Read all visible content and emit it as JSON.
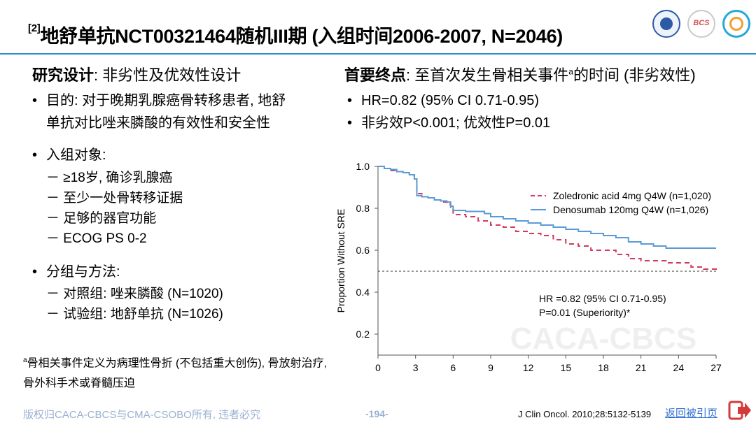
{
  "header": {
    "ref_mark": "[2]",
    "title": "地舒单抗NCT00321464随机III期 (入组时间2006-2007, N=2046)"
  },
  "logos": [
    "university-seal",
    "bcs-logo",
    "csobo-logo"
  ],
  "logo_text": {
    "bcs": "BCS"
  },
  "design": {
    "heading_bold": "研究设计",
    "heading_rest": ": 非劣性及优效性设计",
    "purpose_line1": "目的: 对于晚期乳腺癌骨转移患者, 地舒",
    "purpose_line2": "单抗对比唑来膦酸的有效性和安全性",
    "population_label": "入组对象:",
    "population": [
      "－ ≥18岁, 确诊乳腺癌",
      "－ 至少一处骨转移证据",
      "－ 足够的器官功能",
      "－ ECOG PS 0-2"
    ],
    "grouping_label": "分组与方法:",
    "grouping": [
      "－ 对照组: 唑来膦酸 (N=1020)",
      "－ 试验组: 地舒单抗 (N=1026)"
    ],
    "footnote_sup": "a",
    "footnote": "骨相关事件定义为病理性骨折 (不包括重大创伤), 骨放射治疗, 骨外科手术或脊髓压迫"
  },
  "endpoint": {
    "heading_bold": "首要终点",
    "heading_rest": ": 至首次发生骨相关事件",
    "heading_sup": "a",
    "heading_tail": "的时间 (非劣效性)",
    "items": [
      "HR=0.82 (95% CI 0.71-0.95)",
      "非劣效P<0.001; 优效性P=0.01"
    ]
  },
  "footer": {
    "copyright": "版权归CACA-CBCS与CMA-CSOBO所有, 违者必究",
    "page": "-194-",
    "reference": "J Clin Oncol. 2010;28:5132-5139",
    "back_link": "返回被引页",
    "back_icon": "exit-arrow-icon"
  },
  "chart_data": {
    "type": "line",
    "ylabel": "Proportion Without SRE",
    "xlabel": "",
    "xlim": [
      0,
      27
    ],
    "ylim": [
      0.1,
      1.0
    ],
    "xticks": [
      0,
      3,
      6,
      9,
      12,
      15,
      18,
      21,
      24,
      27
    ],
    "yticks": [
      0.2,
      0.4,
      0.6,
      0.8,
      1.0
    ],
    "reference_line": {
      "y": 0.5,
      "style": "dotted"
    },
    "watermark": "CACA-CBCS",
    "annotation": [
      "HR =0.82 (95% CI 0.71-0.95)",
      "P=0.01 (Superiority)*"
    ],
    "legend_position": "top-right",
    "series": [
      {
        "name": "Zoledronic acid 4mg Q4W (n=1,020)",
        "color": "#d13a5e",
        "dash": true,
        "x": [
          0,
          0.5,
          1,
          1.5,
          2,
          2.5,
          2.9,
          3.1,
          3.5,
          4,
          4.5,
          5,
          5.5,
          5.8,
          6,
          7,
          8,
          9,
          10,
          11,
          12,
          13,
          14,
          15,
          16,
          17,
          18,
          19,
          20,
          21,
          22,
          23,
          24,
          25,
          26,
          27
        ],
        "y": [
          1.0,
          0.99,
          0.98,
          0.975,
          0.97,
          0.96,
          0.94,
          0.87,
          0.855,
          0.85,
          0.84,
          0.83,
          0.82,
          0.8,
          0.77,
          0.76,
          0.74,
          0.72,
          0.71,
          0.69,
          0.68,
          0.67,
          0.65,
          0.63,
          0.62,
          0.6,
          0.6,
          0.58,
          0.56,
          0.55,
          0.55,
          0.54,
          0.54,
          0.52,
          0.51,
          0.5
        ]
      },
      {
        "name": "Denosumab 120mg Q4W (n=1,026)",
        "color": "#5b9bd5",
        "dash": false,
        "x": [
          0,
          0.5,
          1,
          1.5,
          2,
          2.5,
          2.9,
          3.1,
          3.5,
          4,
          4.5,
          5,
          5.5,
          5.8,
          6,
          7,
          8,
          8.5,
          9,
          10,
          11,
          12,
          13,
          14,
          15,
          16,
          17,
          18,
          19,
          20,
          21,
          22,
          23,
          24,
          25,
          26,
          27
        ],
        "y": [
          1.0,
          0.99,
          0.985,
          0.975,
          0.97,
          0.96,
          0.94,
          0.86,
          0.855,
          0.85,
          0.84,
          0.835,
          0.83,
          0.81,
          0.79,
          0.785,
          0.785,
          0.775,
          0.76,
          0.75,
          0.74,
          0.73,
          0.72,
          0.71,
          0.7,
          0.69,
          0.68,
          0.67,
          0.66,
          0.64,
          0.63,
          0.62,
          0.61,
          0.61,
          0.61,
          0.61,
          0.61
        ]
      }
    ]
  }
}
